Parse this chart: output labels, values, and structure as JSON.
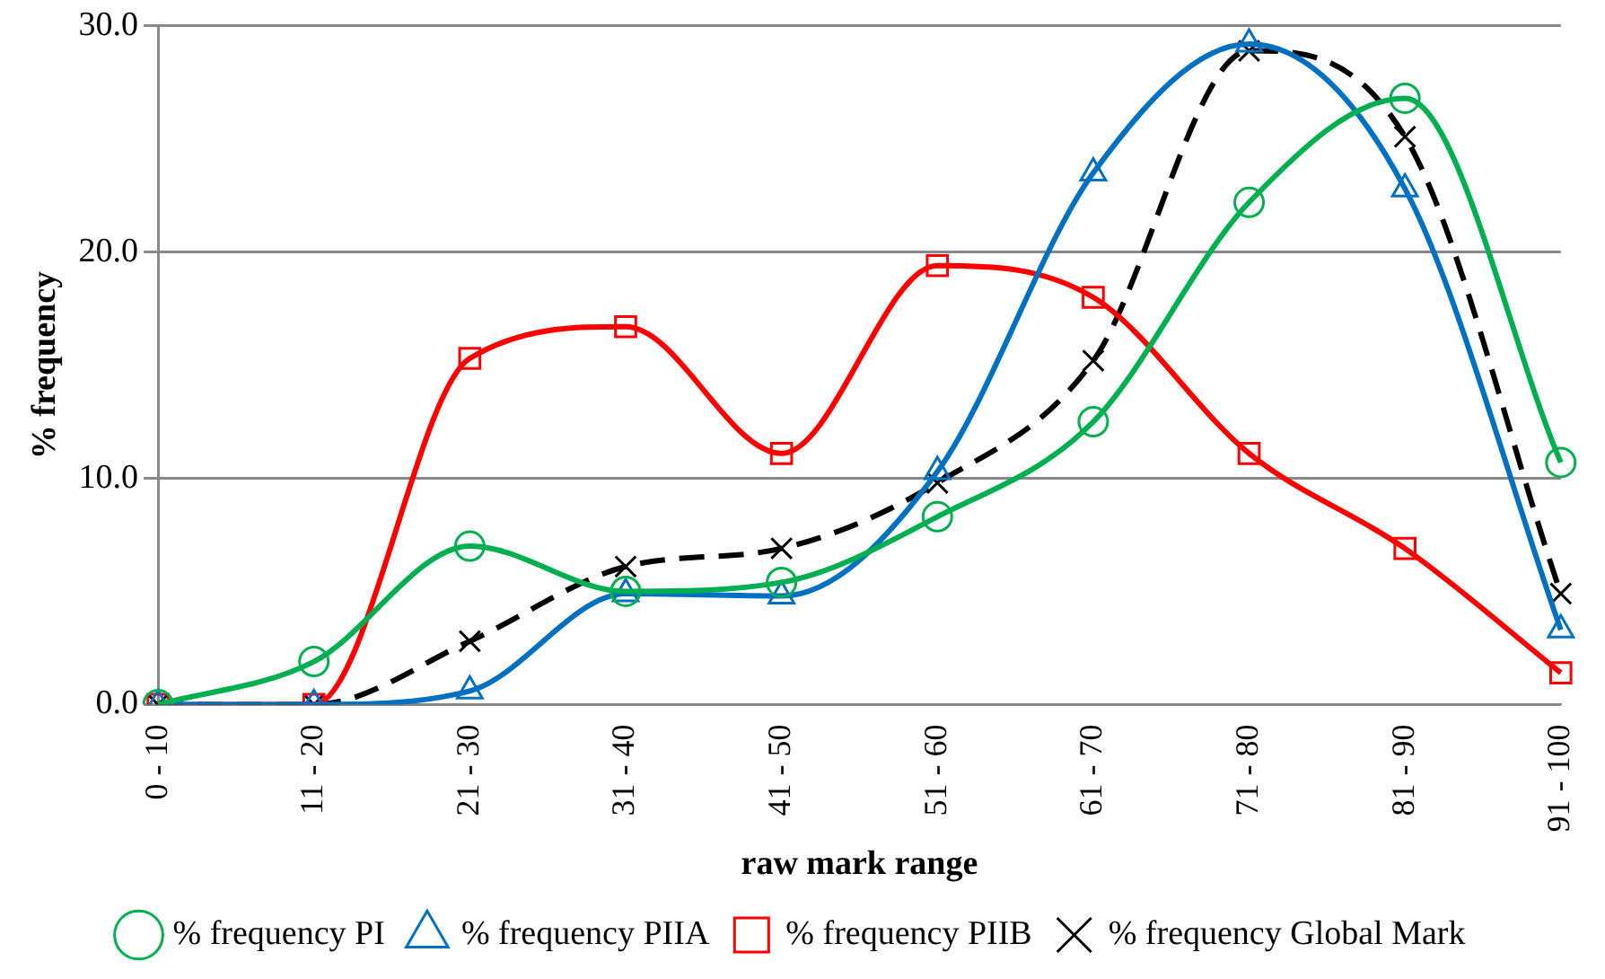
{
  "chart_data": {
    "type": "line",
    "xlabel": "raw mark range",
    "ylabel": "% frequency",
    "categories": [
      "0 - 10",
      "11 - 20",
      "21 - 30",
      "31 - 40",
      "41 - 50",
      "51 - 60",
      "61 - 70",
      "71 - 80",
      "81 - 90",
      "91 - 100"
    ],
    "series": [
      {
        "name": "% frequency PI",
        "color": "#00b050",
        "marker": "circle",
        "line_style": "solid",
        "values": [
          0,
          1.9,
          7.0,
          5.0,
          5.4,
          8.3,
          12.5,
          22.2,
          26.8,
          10.7
        ]
      },
      {
        "name": "% frequency PIIA",
        "color": "#0070c0",
        "marker": "triangle",
        "line_style": "solid",
        "values": [
          0,
          0,
          0.6,
          4.9,
          4.8,
          10.3,
          23.5,
          29.2,
          22.8,
          3.3
        ]
      },
      {
        "name": "% frequency PIIB",
        "color": "#ff0000",
        "marker": "square",
        "line_style": "solid",
        "values": [
          0,
          0,
          15.3,
          16.7,
          11.1,
          19.4,
          18.0,
          11.1,
          6.9,
          1.4
        ]
      },
      {
        "name": "% frequency Global Mark",
        "color": "#000000",
        "marker": "cross",
        "line_style": "dashed",
        "values": [
          0,
          0,
          2.8,
          6.1,
          6.9,
          9.8,
          15.2,
          28.9,
          25.1,
          4.9
        ]
      }
    ],
    "ylim": [
      0,
      30
    ],
    "yticks": [
      {
        "value": 0,
        "label": "0.0"
      },
      {
        "value": 10,
        "label": "10.0"
      },
      {
        "value": 20,
        "label": "20.0"
      },
      {
        "value": 30,
        "label": "30.0"
      }
    ],
    "grid": "y",
    "legend": "bottom"
  }
}
